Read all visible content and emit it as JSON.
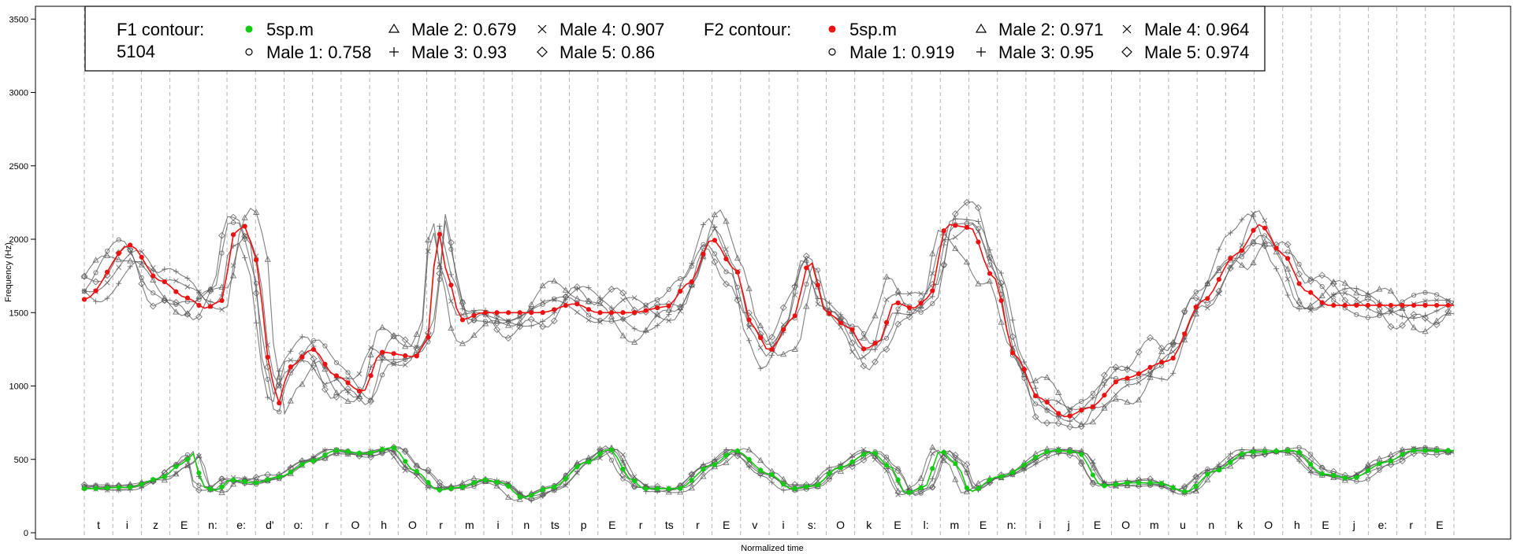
{
  "chart_data": {
    "type": "line",
    "title": "",
    "xlabel": "Normalized time",
    "ylabel": "Frequency (Hz)",
    "ylim": [
      0,
      3600
    ],
    "yticks": [
      0,
      500,
      1000,
      1500,
      2000,
      2500,
      3000,
      3500
    ],
    "grid": "vertical dashed lines at segment boundaries",
    "legend_position": "top-left",
    "segments": [
      "t",
      "i",
      "z",
      "E",
      "n:",
      "e:",
      "d'",
      "o:",
      "r",
      "O",
      "h",
      "O",
      "r",
      "m",
      "i",
      "n",
      "ts",
      "p",
      "E",
      "r",
      "ts",
      "r",
      "E",
      "v",
      "i",
      "s:",
      "O",
      "k",
      "E",
      "l:",
      "m",
      "E",
      "n:",
      "i",
      "j",
      "E",
      "O",
      "m",
      "u",
      "n",
      "k",
      "O",
      "h",
      "E",
      "j",
      "e:",
      "r",
      "E"
    ],
    "legend": {
      "f1_header": "F1 contour:",
      "f1_id": "5104",
      "f2_header": "F2 contour:",
      "f1": [
        {
          "label": "5sp.m",
          "marker": "dot-green"
        },
        {
          "label": "Male 1: 0.758",
          "marker": "circle"
        },
        {
          "label": "Male 2: 0.679",
          "marker": "triangle"
        },
        {
          "label": "Male 3: 0.93",
          "marker": "plus"
        },
        {
          "label": "Male 4: 0.907",
          "marker": "cross"
        },
        {
          "label": "Male 5: 0.86",
          "marker": "diamond"
        }
      ],
      "f2": [
        {
          "label": "5sp.m",
          "marker": "dot-red"
        },
        {
          "label": "Male 1: 0.919",
          "marker": "circle"
        },
        {
          "label": "Male 2: 0.971",
          "marker": "triangle"
        },
        {
          "label": "Male 3: 0.95",
          "marker": "plus"
        },
        {
          "label": "Male 4: 0.964",
          "marker": "cross"
        },
        {
          "label": "Male 5: 0.974",
          "marker": "diamond"
        }
      ]
    },
    "f2_mean_keypoints": [
      [
        0,
        1590
      ],
      [
        2,
        1960
      ],
      [
        3.3,
        1720
      ],
      [
        4.5,
        1600
      ],
      [
        5.3,
        1530
      ],
      [
        6,
        1580
      ],
      [
        6.6,
        2050
      ],
      [
        7.0,
        2090
      ],
      [
        7.6,
        1850
      ],
      [
        8.0,
        1200
      ],
      [
        8.5,
        880
      ],
      [
        9.0,
        1130
      ],
      [
        10.0,
        1250
      ],
      [
        11.0,
        1070
      ],
      [
        12.2,
        960
      ],
      [
        13.0,
        1230
      ],
      [
        14.5,
        1200
      ],
      [
        15.0,
        1300
      ],
      [
        15.5,
        2050
      ],
      [
        16.0,
        1700
      ],
      [
        16.5,
        1450
      ],
      [
        17.5,
        1500
      ],
      [
        20.0,
        1500
      ],
      [
        21.5,
        1560
      ],
      [
        22.5,
        1500
      ],
      [
        24.0,
        1500
      ],
      [
        25.5,
        1540
      ],
      [
        26.5,
        1700
      ],
      [
        27.5,
        2000
      ],
      [
        28.5,
        1800
      ],
      [
        29.3,
        1400
      ],
      [
        30.0,
        1240
      ],
      [
        31.0,
        1450
      ],
      [
        31.8,
        1850
      ],
      [
        32.5,
        1500
      ],
      [
        33.5,
        1400
      ],
      [
        34.2,
        1250
      ],
      [
        34.8,
        1300
      ],
      [
        35.5,
        1570
      ],
      [
        36.3,
        1530
      ],
      [
        37.0,
        1600
      ],
      [
        37.8,
        2100
      ],
      [
        38.8,
        2080
      ],
      [
        39.8,
        1750
      ],
      [
        40.8,
        1200
      ],
      [
        41.8,
        920
      ],
      [
        43.0,
        790
      ],
      [
        44.0,
        850
      ],
      [
        45.5,
        1050
      ],
      [
        47.5,
        1170
      ],
      [
        49.0,
        1580
      ],
      [
        50.5,
        1900
      ],
      [
        51.5,
        2100
      ],
      [
        52.5,
        1900
      ],
      [
        53.5,
        1650
      ],
      [
        54.5,
        1550
      ]
    ],
    "f1_mean_keypoints": [
      [
        0,
        300
      ],
      [
        2,
        310
      ],
      [
        3.3,
        370
      ],
      [
        4.3,
        470
      ],
      [
        4.8,
        540
      ],
      [
        5.2,
        310
      ],
      [
        5.8,
        290
      ],
      [
        6.4,
        360
      ],
      [
        7.5,
        340
      ],
      [
        8.5,
        380
      ],
      [
        10.0,
        490
      ],
      [
        11.0,
        560
      ],
      [
        12.3,
        540
      ],
      [
        13.5,
        580
      ],
      [
        14.5,
        420
      ],
      [
        15.5,
        290
      ],
      [
        16.5,
        310
      ],
      [
        17.5,
        360
      ],
      [
        18.3,
        340
      ],
      [
        19.2,
        240
      ],
      [
        20.5,
        310
      ],
      [
        22.0,
        480
      ],
      [
        23.0,
        570
      ],
      [
        24.0,
        360
      ],
      [
        24.5,
        300
      ],
      [
        26.0,
        300
      ],
      [
        27.5,
        460
      ],
      [
        28.5,
        560
      ],
      [
        30.0,
        400
      ],
      [
        31.0,
        300
      ],
      [
        32.0,
        320
      ],
      [
        33.0,
        440
      ],
      [
        34.5,
        550
      ],
      [
        35.3,
        450
      ],
      [
        36.0,
        270
      ],
      [
        36.8,
        310
      ],
      [
        37.5,
        560
      ],
      [
        38.2,
        470
      ],
      [
        38.8,
        280
      ],
      [
        40.0,
        380
      ],
      [
        42.5,
        560
      ],
      [
        43.5,
        550
      ],
      [
        44.6,
        320
      ],
      [
        45.8,
        340
      ],
      [
        47.0,
        340
      ],
      [
        48.3,
        280
      ],
      [
        49.5,
        420
      ],
      [
        51.0,
        550
      ],
      [
        53.0,
        560
      ],
      [
        54.3,
        400
      ],
      [
        55.5,
        370
      ],
      [
        57.0,
        480
      ],
      [
        58.2,
        560
      ],
      [
        59.5,
        560
      ]
    ],
    "f2_mean_series_note": "values in Hz vs normalized time (segment index units)"
  }
}
